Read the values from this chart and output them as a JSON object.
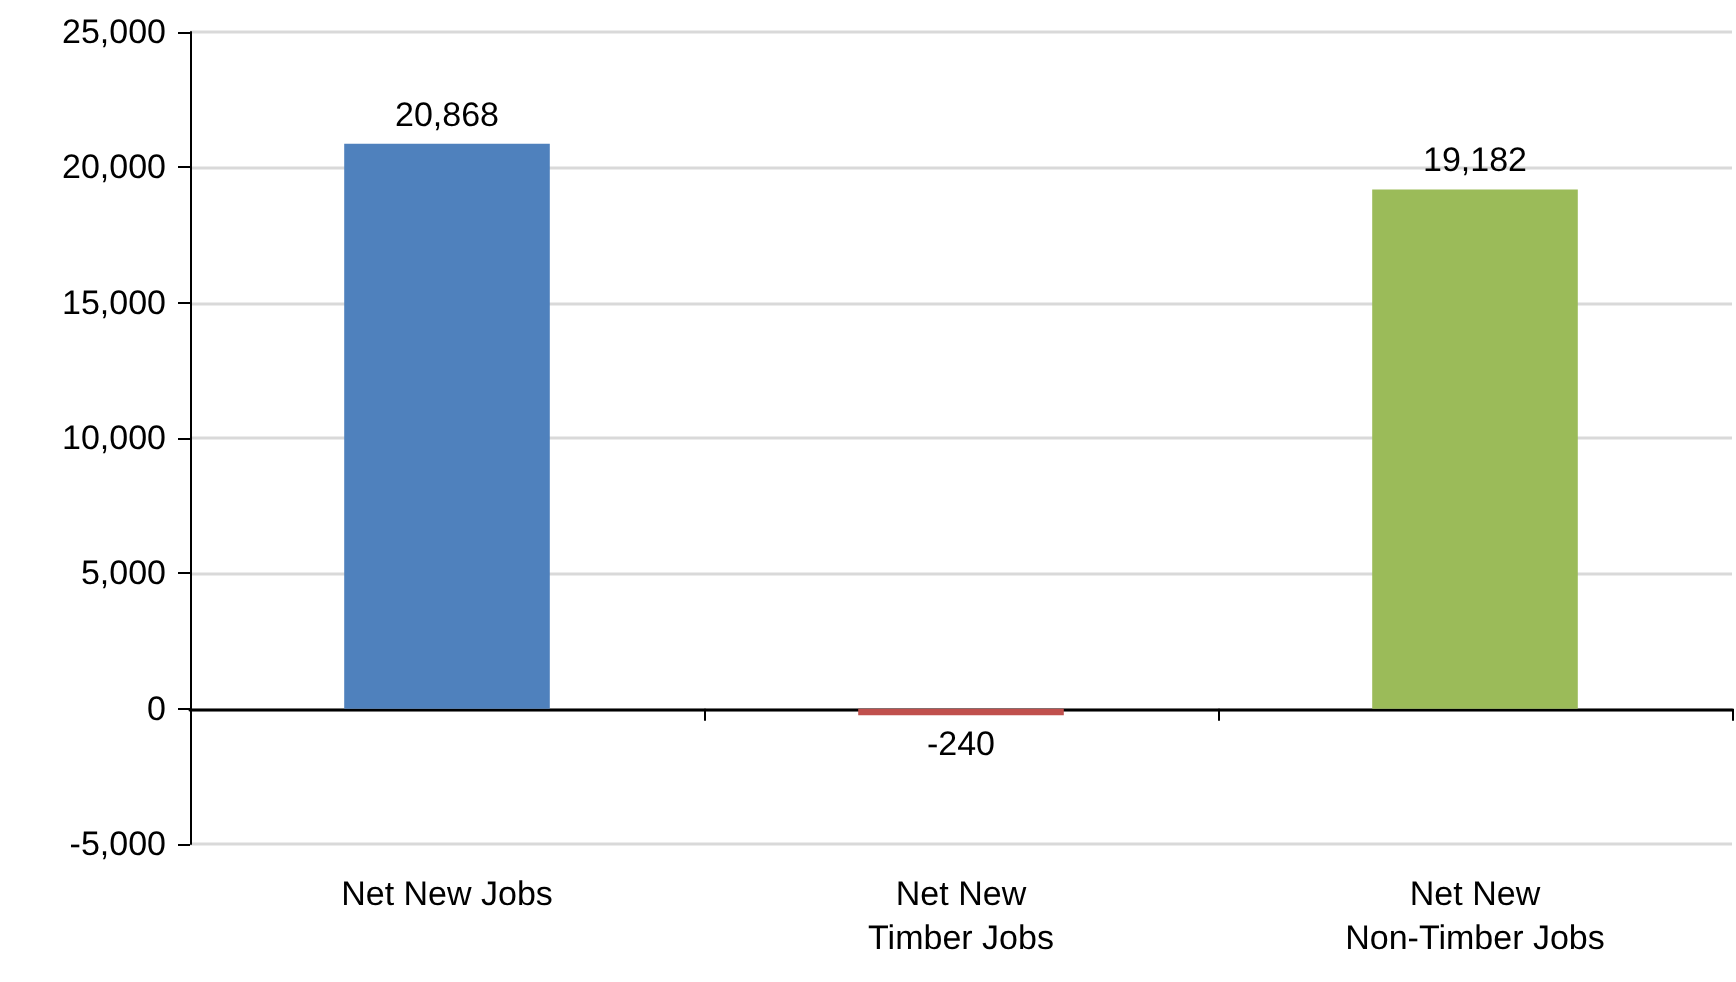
{
  "chart_data": {
    "type": "bar",
    "categories": [
      "Net New Jobs",
      "Net New\nTimber Jobs",
      "Net New\nNon-Timber Jobs"
    ],
    "values": [
      20868,
      -240,
      19182
    ],
    "colors": [
      "#4f81bd",
      "#c0504d",
      "#9bbb59"
    ],
    "value_labels": [
      "20,868",
      "-240",
      "19,182"
    ],
    "ylim": [
      -5000,
      25000
    ],
    "yticks": [
      {
        "value": -5000,
        "label": "-5,000"
      },
      {
        "value": 0,
        "label": "0"
      },
      {
        "value": 5000,
        "label": "5,000"
      },
      {
        "value": 10000,
        "label": "10,000"
      },
      {
        "value": 15000,
        "label": "15,000"
      },
      {
        "value": 20000,
        "label": "20,000"
      },
      {
        "value": 25000,
        "label": "25,000"
      }
    ],
    "grid": "y"
  }
}
